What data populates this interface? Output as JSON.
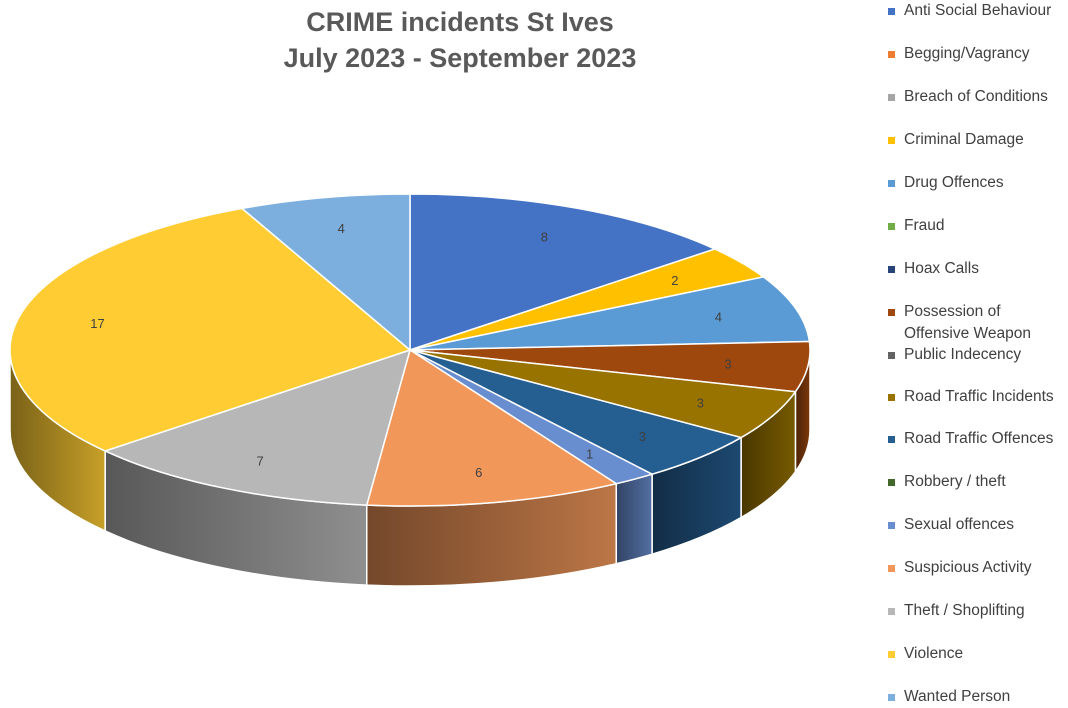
{
  "chart_data": {
    "type": "pie",
    "title": [
      "CRIME incidents St Ives",
      "July 2023 - September 2023"
    ],
    "categories": [
      "Anti Social Behaviour",
      "Begging/Vagrancy",
      "Breach of Conditions",
      "Criminal Damage",
      "Drug Offences",
      "Fraud",
      "Hoax Calls",
      "Possession of Offensive Weapon",
      "Public Indecency",
      "Road Traffic Incidents",
      "Road Traffic Offences",
      "Robbery / theft",
      "Sexual offences",
      "Suspicious Activity",
      "Theft / Shoplifting",
      "Violence",
      "Wanted Person"
    ],
    "colors": [
      "#4472C4",
      "#ED7D31",
      "#A5A5A5",
      "#FFC000",
      "#5B9BD5",
      "#70AD47",
      "#264478",
      "#9E480E",
      "#636363",
      "#997300",
      "#255E91",
      "#43682B",
      "#698ED0",
      "#F1975A",
      "#B7B7B7",
      "#FFCD33",
      "#7CAFDD"
    ],
    "slices": [
      {
        "category": "Anti Social Behaviour",
        "value": 8,
        "color": "#4472C4"
      },
      {
        "category": "Criminal Damage",
        "value": 2,
        "color": "#FFC000"
      },
      {
        "category": "Drug Offences",
        "value": 4,
        "color": "#5B9BD5"
      },
      {
        "category": "Possession of Offensive Weapon",
        "value": 3,
        "color": "#9E480E"
      },
      {
        "category": "Road Traffic Incidents",
        "value": 3,
        "color": "#997300"
      },
      {
        "category": "Road Traffic Offences",
        "value": 3,
        "color": "#255E91"
      },
      {
        "category": "Sexual offences",
        "value": 1,
        "color": "#698ED0"
      },
      {
        "category": "Suspicious Activity",
        "value": 6,
        "color": "#F1975A"
      },
      {
        "category": "Theft / Shoplifting",
        "value": 7,
        "color": "#B7B7B7"
      },
      {
        "category": "Violence",
        "value": 17,
        "color": "#FFCD33"
      },
      {
        "category": "Wanted Person",
        "value": 4,
        "color": "#7CAFDD"
      }
    ],
    "legend_position": "right",
    "style": "3d-pie"
  }
}
